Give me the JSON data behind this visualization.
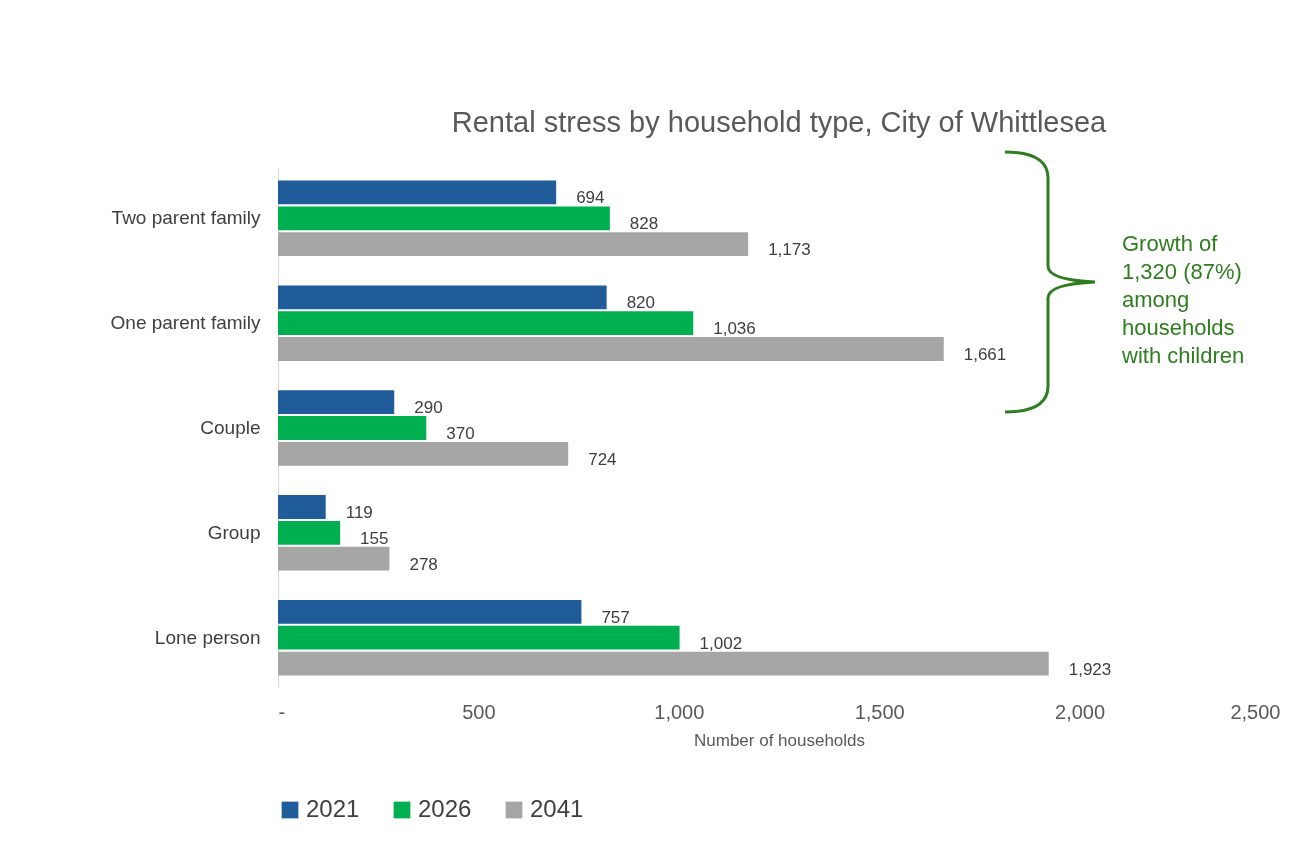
{
  "chart_data": {
    "type": "bar",
    "orientation": "horizontal",
    "title": "Rental stress by household type, City of Whittlesea",
    "xlabel": "Number of households",
    "categories": [
      "Two parent family",
      "One parent family",
      "Couple",
      "Group",
      "Lone person"
    ],
    "series": [
      {
        "name": "2021",
        "color": "#1f5c99",
        "values": [
          694,
          820,
          290,
          119,
          757
        ],
        "value_labels": [
          "694",
          "820",
          "290",
          "119",
          "757"
        ]
      },
      {
        "name": "2026",
        "color": "#00b050",
        "values": [
          828,
          1036,
          370,
          155,
          1002
        ],
        "value_labels": [
          "828",
          "1,036",
          "370",
          "155",
          "1,002"
        ]
      },
      {
        "name": "2041",
        "color": "#a6a6a6",
        "values": [
          1173,
          1661,
          724,
          278,
          1923
        ],
        "value_labels": [
          "1,173",
          "1,661",
          "724",
          "278",
          "1,923"
        ]
      }
    ],
    "xlim": [
      0,
      2500
    ],
    "xticks": [
      {
        "value": 0,
        "label": "-"
      },
      500,
      {
        "value": 1000,
        "label": "1,000"
      },
      {
        "value": 1500,
        "label": "1,500"
      },
      {
        "value": 2000,
        "label": "2,000"
      },
      {
        "value": 2500,
        "label": "2,500"
      }
    ],
    "grid": false,
    "legend": "bottom",
    "annotations": [
      "Growth of 1,320 (87%) among households with children"
    ]
  }
}
